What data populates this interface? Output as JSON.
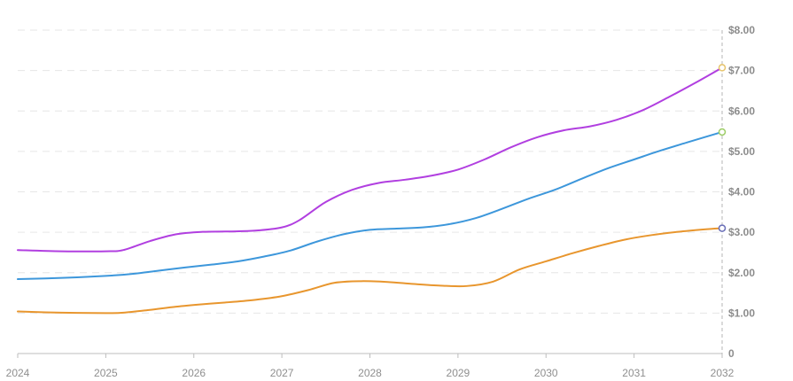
{
  "chart_data": {
    "type": "line",
    "title": "",
    "xlabel": "",
    "ylabel": "",
    "x": [
      "2024",
      "2025",
      "2026",
      "2027",
      "2028",
      "2029",
      "2030",
      "2031",
      "2032"
    ],
    "xlim": [
      2024,
      2032
    ],
    "ylim": [
      0,
      8
    ],
    "y_ticks": [
      0,
      1,
      2,
      3,
      4,
      5,
      6,
      7,
      8
    ],
    "y_tick_labels": [
      "0",
      "$1.00",
      "$2.00",
      "$3.00",
      "$4.00",
      "$5.00",
      "$6.00",
      "$7.00",
      "$8.00"
    ],
    "y_axis_side": "right",
    "grid": true,
    "legend": "none",
    "series": [
      {
        "color": "#b13fe0",
        "marker_color": "#e6c36b",
        "points": [
          [
            2024.0,
            2.56
          ],
          [
            2024.5,
            2.53
          ],
          [
            2025.0,
            2.53
          ],
          [
            2025.2,
            2.56
          ],
          [
            2025.5,
            2.78
          ],
          [
            2025.8,
            2.95
          ],
          [
            2026.1,
            3.01
          ],
          [
            2026.4,
            3.02
          ],
          [
            2026.7,
            3.04
          ],
          [
            2027.0,
            3.12
          ],
          [
            2027.2,
            3.3
          ],
          [
            2027.5,
            3.75
          ],
          [
            2027.8,
            4.05
          ],
          [
            2028.1,
            4.22
          ],
          [
            2028.4,
            4.3
          ],
          [
            2028.7,
            4.4
          ],
          [
            2029.0,
            4.55
          ],
          [
            2029.3,
            4.8
          ],
          [
            2029.6,
            5.1
          ],
          [
            2029.9,
            5.35
          ],
          [
            2030.2,
            5.52
          ],
          [
            2030.5,
            5.62
          ],
          [
            2030.8,
            5.78
          ],
          [
            2031.1,
            6.02
          ],
          [
            2031.4,
            6.35
          ],
          [
            2031.7,
            6.7
          ],
          [
            2032.0,
            7.07
          ]
        ]
      },
      {
        "color": "#3d97db",
        "marker_color": "#9ccc65",
        "points": [
          [
            2024.0,
            1.84
          ],
          [
            2024.5,
            1.87
          ],
          [
            2025.0,
            1.92
          ],
          [
            2025.3,
            1.97
          ],
          [
            2025.6,
            2.05
          ],
          [
            2025.9,
            2.13
          ],
          [
            2026.2,
            2.2
          ],
          [
            2026.5,
            2.28
          ],
          [
            2026.8,
            2.4
          ],
          [
            2027.1,
            2.55
          ],
          [
            2027.4,
            2.77
          ],
          [
            2027.7,
            2.95
          ],
          [
            2028.0,
            3.06
          ],
          [
            2028.3,
            3.09
          ],
          [
            2028.6,
            3.12
          ],
          [
            2028.9,
            3.2
          ],
          [
            2029.2,
            3.35
          ],
          [
            2029.5,
            3.58
          ],
          [
            2029.8,
            3.83
          ],
          [
            2030.1,
            4.05
          ],
          [
            2030.4,
            4.32
          ],
          [
            2030.7,
            4.58
          ],
          [
            2031.0,
            4.8
          ],
          [
            2031.3,
            5.02
          ],
          [
            2031.6,
            5.22
          ],
          [
            2032.0,
            5.48
          ]
        ]
      },
      {
        "color": "#e8962e",
        "marker_color": "#6a6fb8",
        "points": [
          [
            2024.0,
            1.04
          ],
          [
            2024.5,
            1.01
          ],
          [
            2025.0,
            1.0
          ],
          [
            2025.2,
            1.01
          ],
          [
            2025.5,
            1.08
          ],
          [
            2025.8,
            1.16
          ],
          [
            2026.1,
            1.22
          ],
          [
            2026.4,
            1.27
          ],
          [
            2026.7,
            1.33
          ],
          [
            2027.0,
            1.42
          ],
          [
            2027.3,
            1.57
          ],
          [
            2027.6,
            1.75
          ],
          [
            2027.9,
            1.79
          ],
          [
            2028.2,
            1.77
          ],
          [
            2028.5,
            1.72
          ],
          [
            2028.8,
            1.68
          ],
          [
            2029.1,
            1.67
          ],
          [
            2029.4,
            1.78
          ],
          [
            2029.7,
            2.08
          ],
          [
            2030.0,
            2.28
          ],
          [
            2030.3,
            2.48
          ],
          [
            2030.6,
            2.66
          ],
          [
            2030.9,
            2.82
          ],
          [
            2031.2,
            2.93
          ],
          [
            2031.5,
            3.01
          ],
          [
            2031.8,
            3.07
          ],
          [
            2032.0,
            3.1
          ]
        ]
      }
    ]
  }
}
